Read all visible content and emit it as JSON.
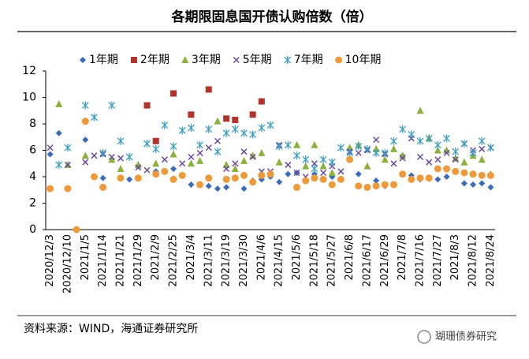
{
  "chart_data": {
    "type": "scatter",
    "title": "各期限固息国开债认购倍数（倍）",
    "categories": [
      "2020/12/3",
      null,
      "2020/12/10",
      null,
      "2021/1/5",
      null,
      "2021/1/14",
      null,
      "2021/1/21",
      null,
      "2021/1/29",
      null,
      "2021/2/9",
      null,
      "2021/2/25",
      null,
      "2021/3/4",
      null,
      "2021/3/11",
      null,
      "2021/3/19",
      null,
      "2021/3/30",
      null,
      "2021/4/6",
      null,
      "2021/4/15",
      null,
      "2021/5/6",
      null,
      "2021/5/18",
      null,
      "2021/5/27",
      null,
      "2021/6/8",
      null,
      "2021/6/17",
      null,
      "2021/6/29",
      null,
      "2021/7/8",
      null,
      "2021/7/16",
      null,
      "2021/7/27",
      null,
      "2021/8/3",
      null,
      "2021/8/12",
      null,
      "2021/8/24"
    ],
    "series": [
      {
        "name": "1年期",
        "color": "#3b6cb7",
        "marker": "diamond",
        "values": [
          5.7,
          7.3,
          null,
          null,
          6.8,
          null,
          3.9,
          null,
          null,
          3.8,
          4.8,
          null,
          4.4,
          null,
          4.6,
          null,
          3.4,
          null,
          3.3,
          3.1,
          3.2,
          null,
          3.1,
          3.7,
          3.8,
          4.0,
          3.6,
          4.2,
          4.3,
          null,
          4.2,
          null,
          4.0,
          3.8,
          null,
          4.2,
          null,
          3.7,
          3.3,
          null,
          5.6,
          4.1,
          3.8,
          null,
          3.8,
          4.0,
          null,
          3.5,
          3.4,
          3.5,
          3.2
        ]
      },
      {
        "name": "2年期",
        "color": "#b2322c",
        "marker": "square",
        "values": [
          null,
          null,
          null,
          null,
          null,
          null,
          null,
          null,
          null,
          null,
          null,
          9.4,
          6.7,
          null,
          10.3,
          null,
          8.7,
          null,
          10.6,
          null,
          8.4,
          8.3,
          null,
          8.7,
          9.7,
          null,
          null,
          null,
          null,
          null,
          null,
          null,
          null,
          null,
          null,
          null,
          null,
          null,
          null,
          null,
          null,
          null,
          null,
          null,
          null,
          null,
          null,
          null,
          null,
          null,
          null
        ]
      },
      {
        "name": "3年期",
        "color": "#8bb13d",
        "marker": "triangle",
        "values": [
          null,
          9.5,
          4.9,
          null,
          5.6,
          null,
          null,
          5.3,
          4.6,
          null,
          4.9,
          null,
          5.0,
          null,
          5.7,
          null,
          5.0,
          5.2,
          null,
          8.2,
          4.9,
          4.6,
          5.2,
          5.6,
          5.8,
          null,
          5.1,
          null,
          6.4,
          4.8,
          6.4,
          4.8,
          4.3,
          null,
          6.2,
          6.4,
          4.8,
          6.1,
          5.3,
          6.1,
          5.6,
          null,
          9.0,
          6.9,
          6.0,
          6.0,
          5.4,
          5.1,
          5.6,
          5.3,
          4.2
        ]
      },
      {
        "name": "5年期",
        "color": "#6a4a9c",
        "marker": "cross",
        "values": [
          6.2,
          null,
          4.9,
          null,
          5.1,
          5.6,
          5.7,
          5.5,
          5.4,
          null,
          4.7,
          4.5,
          null,
          5.3,
          null,
          5.0,
          5.5,
          5.8,
          6.2,
          6.7,
          4.6,
          5.0,
          5.9,
          5.5,
          4.4,
          4.4,
          6.4,
          4.9,
          4.3,
          4.0,
          5.0,
          4.3,
          4.8,
          4.4,
          5.9,
          5.8,
          6.0,
          6.8,
          5.7,
          5.0,
          5.4,
          6.9,
          5.5,
          5.1,
          5.3,
          5.8,
          5.3,
          6.5,
          6.0,
          6.1,
          6.2
        ]
      },
      {
        "name": "7年期",
        "color": "#3a9fc3",
        "marker": "star",
        "values": [
          null,
          4.9,
          6.2,
          null,
          9.4,
          8.5,
          5.8,
          9.4,
          6.7,
          5.5,
          null,
          6.5,
          6.1,
          7.9,
          6.3,
          7.5,
          7.7,
          6.4,
          7.6,
          5.9,
          7.3,
          7.6,
          7.3,
          7.2,
          7.7,
          7.9,
          6.3,
          6.4,
          5.6,
          5.3,
          4.6,
          5.3,
          5.1,
          6.2,
          5.8,
          6.3,
          6.1,
          5.8,
          5.8,
          6.7,
          7.6,
          7.2,
          6.7,
          6.9,
          6.4,
          6.9,
          5.9,
          6.5,
          5.8,
          6.7,
          6.2
        ]
      },
      {
        "name": "10年期",
        "color": "#ef9a3a",
        "marker": "circle",
        "values": [
          3.1,
          null,
          3.1,
          0,
          8.2,
          4.0,
          3.2,
          null,
          3.9,
          null,
          3.9,
          null,
          4.2,
          4.4,
          3.8,
          4.1,
          null,
          3.4,
          3.9,
          null,
          3.8,
          3.9,
          4.1,
          3.6,
          4.1,
          4.2,
          null,
          null,
          3.2,
          3.7,
          3.9,
          3.8,
          3.4,
          3.8,
          5.3,
          3.3,
          3.2,
          3.3,
          3.4,
          3.4,
          4.2,
          3.8,
          3.9,
          3.9,
          4.6,
          4.6,
          4.4,
          4.3,
          4.2,
          4.1,
          4.1
        ]
      }
    ],
    "ylim": [
      0,
      12
    ],
    "yticks": [
      0,
      2,
      4,
      6,
      8,
      10,
      12
    ],
    "legend": "top",
    "source": "资料来源：WIND，海通证券研究所",
    "watermark": "瑚珊债券研究"
  }
}
